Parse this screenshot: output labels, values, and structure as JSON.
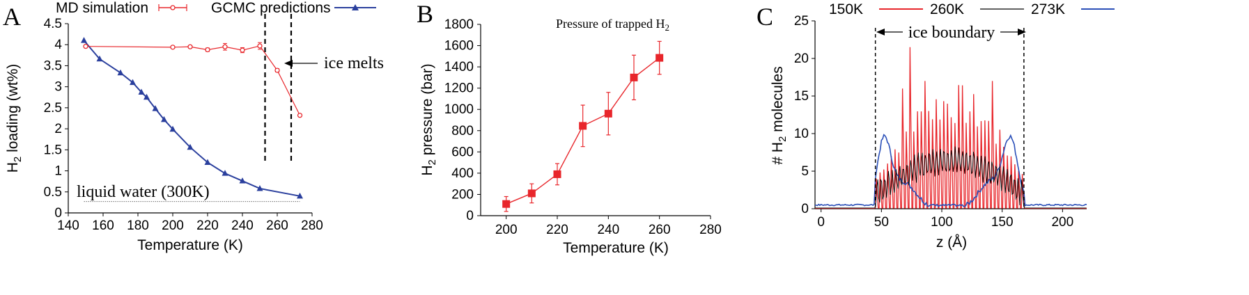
{
  "chart_data": [
    {
      "panel": "A",
      "type": "line",
      "xlabel": "Temperature (K)",
      "ylabel": "H2 loading (wt%)",
      "xlim": [
        140,
        280
      ],
      "ylim": [
        0,
        4.5
      ],
      "x_ticks": [
        "140",
        "160",
        "180",
        "200",
        "220",
        "240",
        "260",
        "280"
      ],
      "y_ticks": [
        "0",
        "0.5",
        "1",
        "1.5",
        "2",
        "2.5",
        "3",
        "3.5",
        "4",
        "4.5"
      ],
      "series": [
        {
          "name": "MD simulation",
          "color": "#e8262b",
          "marker": "open-circle",
          "error_bars": true,
          "x": [
            150,
            200,
            210,
            220,
            230,
            240,
            250,
            260,
            273
          ],
          "y": [
            3.96,
            3.94,
            3.95,
            3.88,
            3.95,
            3.87,
            3.97,
            3.39,
            2.32
          ],
          "err": [
            0.02,
            0.02,
            0.03,
            0.04,
            0.08,
            0.06,
            0.08,
            0.04,
            0.03
          ]
        },
        {
          "name": "GCMC predictions",
          "color": "#2a3f9d",
          "marker": "filled-triangle",
          "x": [
            149,
            158,
            170,
            177,
            182,
            185,
            190,
            195,
            200,
            210,
            220,
            230,
            240,
            250,
            273
          ],
          "y": [
            4.1,
            3.66,
            3.33,
            3.1,
            2.87,
            2.75,
            2.48,
            2.22,
            1.99,
            1.56,
            1.2,
            0.94,
            0.76,
            0.58,
            0.4
          ]
        }
      ],
      "reference_line": {
        "label": "liquid water (300K)",
        "y": 0.27,
        "x_range": [
          149,
          273
        ]
      },
      "vertical_lines": [
        253,
        268
      ],
      "annotation": "ice melts"
    },
    {
      "panel": "B",
      "type": "line",
      "title": "Pressure of trapped H2",
      "xlabel": "Temperature (K)",
      "ylabel": "H2 pressure (bar)",
      "xlim": [
        190,
        280
      ],
      "ylim": [
        0,
        1800
      ],
      "x_ticks": [
        "200",
        "220",
        "240",
        "260",
        "280"
      ],
      "y_ticks": [
        "0",
        "200",
        "400",
        "600",
        "800",
        "1000",
        "1200",
        "1400",
        "1600",
        "1800"
      ],
      "series": [
        {
          "name": "",
          "color": "#e8262b",
          "marker": "filled-square",
          "x": [
            200,
            210,
            220,
            230,
            240,
            250,
            260
          ],
          "y": [
            110,
            210,
            390,
            845,
            960,
            1300,
            1485
          ],
          "err": [
            70,
            90,
            100,
            195,
            200,
            210,
            155
          ]
        }
      ]
    },
    {
      "panel": "C",
      "type": "line",
      "xlabel": "z (Å)",
      "ylabel": "# H2 molecules",
      "xlim": [
        -5,
        220
      ],
      "ylim": [
        0,
        25
      ],
      "x_ticks": [
        "0",
        "50",
        "100",
        "150",
        "200"
      ],
      "y_ticks": [
        "0",
        "5",
        "10",
        "15",
        "20",
        "25"
      ],
      "annotation": "ice boundary",
      "boundary_lines": [
        45,
        168
      ],
      "legend_position": "top",
      "series": [
        {
          "name": "150K",
          "color": "#e8262b",
          "style": "dense oscillation",
          "peak_max": 21.5
        },
        {
          "name": "260K",
          "color": "#000000",
          "style": "moderate oscillation",
          "peak_max": 8.0
        },
        {
          "name": "273K",
          "color": "#2a4fb8",
          "style": "smooth, peaks near boundaries",
          "peak_max": 9.5
        }
      ]
    }
  ]
}
